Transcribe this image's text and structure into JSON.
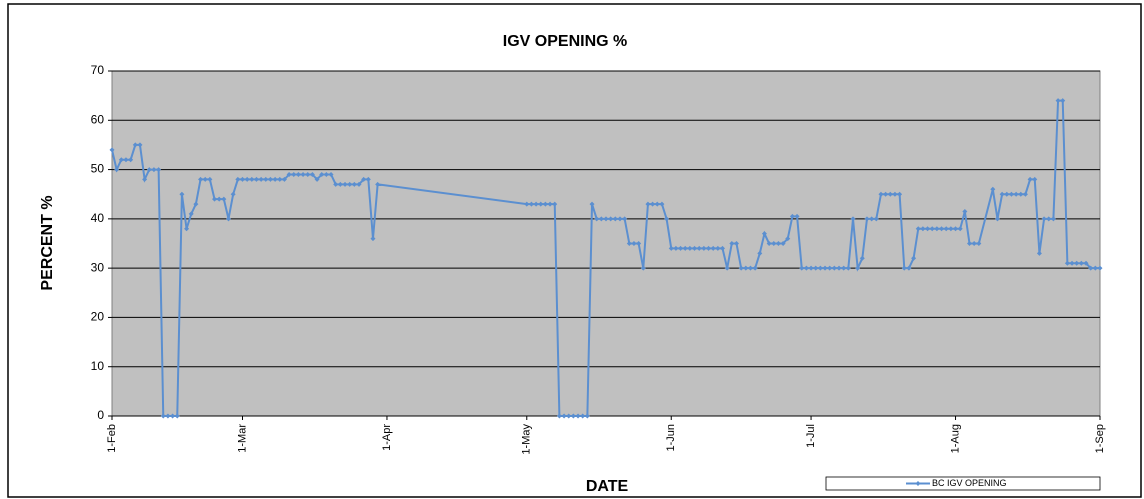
{
  "chart_data": {
    "type": "line",
    "title": "IGV OPENING %",
    "xlabel": "DATE",
    "ylabel": "PERCENT %",
    "x": [
      "1-Feb",
      "2-Feb",
      "3-Feb",
      "4-Feb",
      "5-Feb",
      "6-Feb",
      "7-Feb",
      "8-Feb",
      "9-Feb",
      "10-Feb",
      "11-Feb",
      "12-Feb",
      "13-Feb",
      "14-Feb",
      "15-Feb",
      "16-Feb",
      "17-Feb",
      "18-Feb",
      "19-Feb",
      "20-Feb",
      "21-Feb",
      "22-Feb",
      "23-Feb",
      "24-Feb",
      "25-Feb",
      "26-Feb",
      "27-Feb",
      "28-Feb",
      "1-Mar",
      "2-Mar",
      "3-Mar",
      "4-Mar",
      "5-Mar",
      "6-Mar",
      "7-Mar",
      "8-Mar",
      "9-Mar",
      "10-Mar",
      "11-Mar",
      "12-Mar",
      "13-Mar",
      "14-Mar",
      "15-Mar",
      "16-Mar",
      "17-Mar",
      "18-Mar",
      "19-Mar",
      "20-Mar",
      "21-Mar",
      "22-Mar",
      "23-Mar",
      "24-Mar",
      "25-Mar",
      "26-Mar",
      "27-Mar",
      "28-Mar",
      "29-Mar",
      "30-Mar",
      "1-May",
      "2-May",
      "3-May",
      "4-May",
      "5-May",
      "6-May",
      "7-May",
      "8-May",
      "9-May",
      "10-May",
      "11-May",
      "12-May",
      "13-May",
      "14-May",
      "15-May",
      "16-May",
      "17-May",
      "18-May",
      "19-May",
      "20-May",
      "21-May",
      "22-May",
      "23-May",
      "24-May",
      "25-May",
      "26-May",
      "27-May",
      "28-May",
      "29-May",
      "30-May",
      "31-May",
      "1-Jun",
      "2-Jun",
      "3-Jun",
      "4-Jun",
      "5-Jun",
      "6-Jun",
      "7-Jun",
      "8-Jun",
      "9-Jun",
      "10-Jun",
      "11-Jun",
      "12-Jun",
      "13-Jun",
      "14-Jun",
      "15-Jun",
      "16-Jun",
      "17-Jun",
      "18-Jun",
      "19-Jun",
      "20-Jun",
      "21-Jun",
      "22-Jun",
      "23-Jun",
      "24-Jun",
      "25-Jun",
      "26-Jun",
      "27-Jun",
      "28-Jun",
      "29-Jun",
      "30-Jun",
      "1-Jul",
      "2-Jul",
      "3-Jul",
      "4-Jul",
      "5-Jul",
      "6-Jul",
      "7-Jul",
      "8-Jul",
      "9-Jul",
      "10-Jul",
      "11-Jul",
      "12-Jul",
      "13-Jul",
      "14-Jul",
      "15-Jul",
      "16-Jul",
      "17-Jul",
      "18-Jul",
      "19-Jul",
      "20-Jul",
      "21-Jul",
      "22-Jul",
      "23-Jul",
      "24-Jul",
      "25-Jul",
      "26-Jul",
      "27-Jul",
      "28-Jul",
      "29-Jul",
      "30-Jul",
      "31-Jul",
      "1-Aug",
      "2-Aug",
      "3-Aug",
      "4-Aug",
      "5-Aug",
      "6-Aug",
      "9-Aug",
      "10-Aug",
      "11-Aug",
      "12-Aug",
      "13-Aug",
      "14-Aug",
      "15-Aug",
      "16-Aug",
      "17-Aug",
      "18-Aug",
      "19-Aug",
      "20-Aug",
      "21-Aug",
      "22-Aug",
      "23-Aug",
      "24-Aug",
      "25-Aug",
      "26-Aug",
      "27-Aug",
      "28-Aug",
      "29-Aug",
      "30-Aug",
      "31-Aug",
      "1-Sep"
    ],
    "series": [
      {
        "name": "BC IGV OPENING",
        "color": "#5b8fd0",
        "values": [
          54,
          50,
          52,
          52,
          52,
          55,
          55,
          48,
          50,
          50,
          50,
          0,
          0,
          0,
          0,
          45,
          38,
          41,
          43,
          48,
          48,
          48,
          44,
          44,
          44,
          40,
          45,
          48,
          48,
          48,
          48,
          48,
          48,
          48,
          48,
          48,
          48,
          48,
          49,
          49,
          49,
          49,
          49,
          49,
          48,
          49,
          49,
          49,
          47,
          47,
          47,
          47,
          47,
          47,
          48,
          48,
          36,
          47,
          43,
          43,
          43,
          43,
          43,
          43,
          43,
          0,
          0,
          0,
          0,
          0,
          0,
          0,
          43,
          40,
          40,
          40,
          40,
          40,
          40,
          40,
          35,
          35,
          35,
          30,
          43,
          43,
          43,
          43,
          40,
          34,
          34,
          34,
          34,
          34,
          34,
          34,
          34,
          34,
          34,
          34,
          34,
          30,
          35,
          35,
          30,
          30,
          30,
          30,
          33,
          37,
          35,
          35,
          35,
          35,
          36,
          40.5,
          40.5,
          30,
          30,
          30,
          30,
          30,
          30,
          30,
          30,
          30,
          30,
          30,
          40,
          30,
          32,
          40,
          40,
          40,
          45,
          45,
          45,
          45,
          45,
          30,
          30,
          32,
          38,
          38,
          38,
          38,
          38,
          38,
          38,
          38,
          38,
          38,
          41.5,
          35,
          35,
          35,
          46,
          40,
          45,
          45,
          45,
          45,
          45,
          45,
          48,
          48,
          33,
          40,
          40,
          40,
          64,
          64,
          31,
          31,
          31,
          31,
          31,
          30,
          30,
          30
        ]
      }
    ],
    "xlim": [
      "1-Feb",
      "1-Sep"
    ],
    "xticks": [
      "1-Feb",
      "1-Mar",
      "1-Apr",
      "1-May",
      "1-Jun",
      "1-Jul",
      "1-Aug",
      "1-Sep"
    ],
    "ylim": [
      0,
      70
    ],
    "yticks": [
      0,
      10,
      20,
      30,
      40,
      50,
      60,
      70
    ],
    "grid": true,
    "legend": "bottom-right"
  }
}
